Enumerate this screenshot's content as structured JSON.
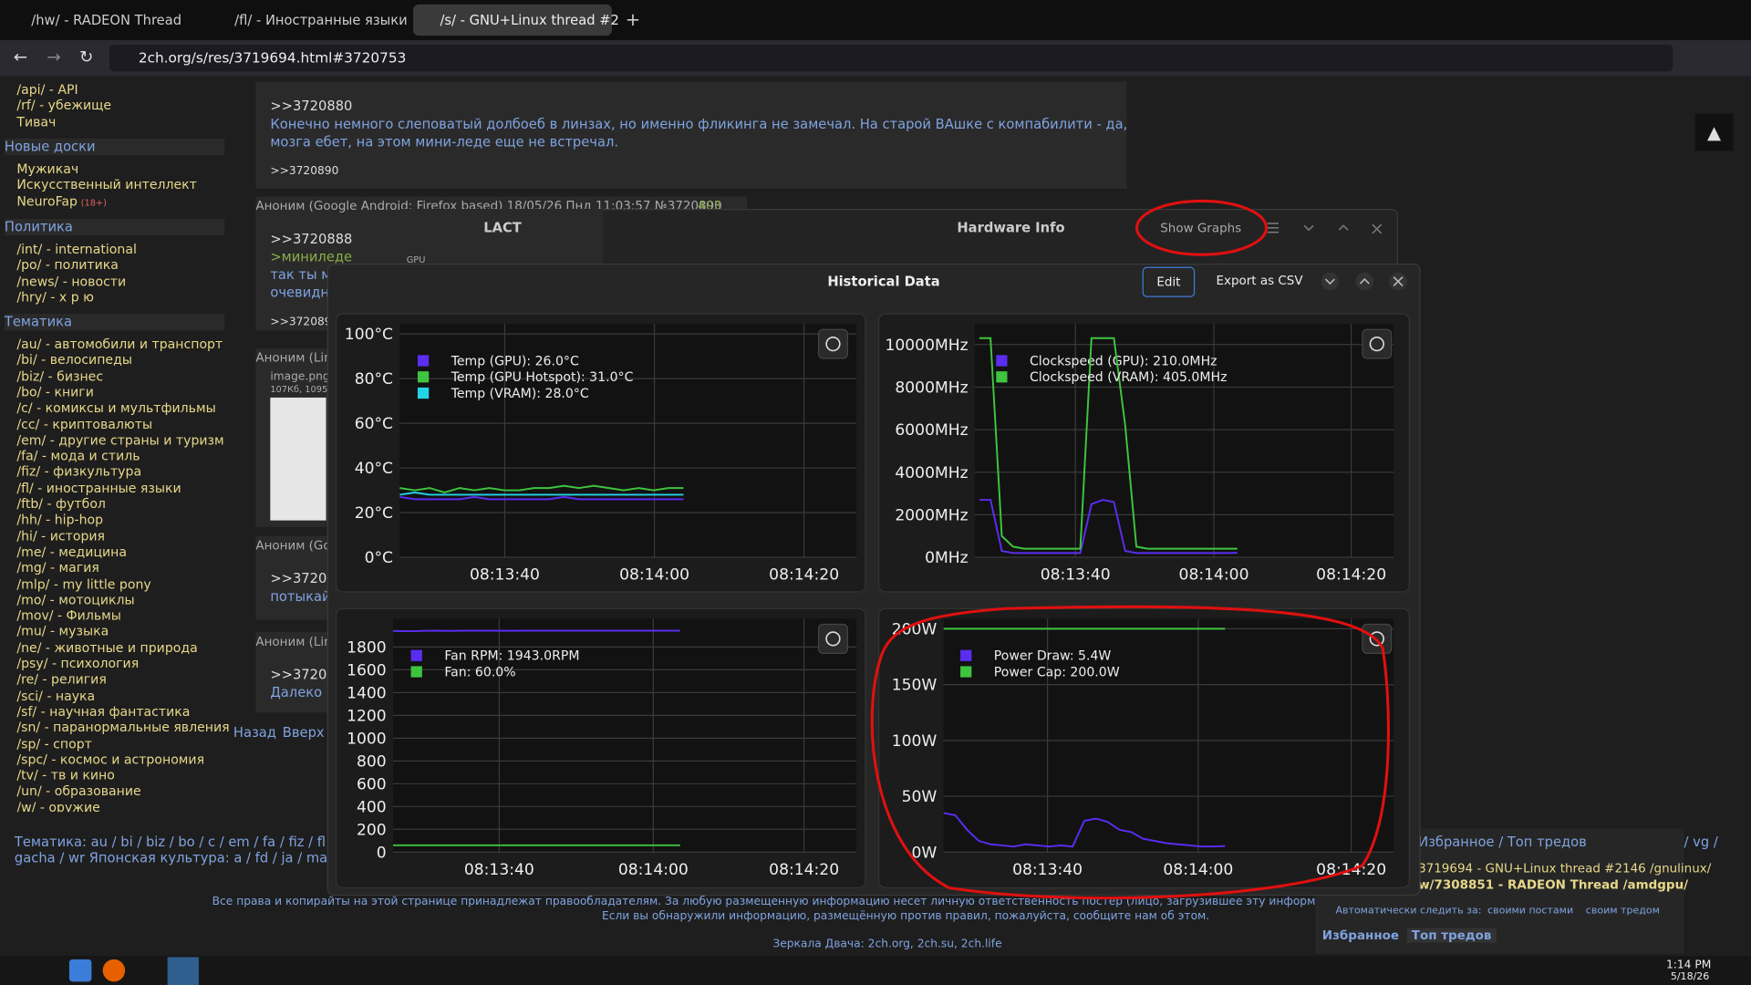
{
  "browser": {
    "tabs": [
      "/hw/ - RADEON Thread",
      "/fl/ - Иностранные языки",
      "/s/ - GNU+Linux thread #2"
    ],
    "url": "2ch.org/s/res/3719694.html#3720753"
  },
  "sidebar": {
    "sections": [
      {
        "items": [
          "/api/ - API",
          "/rf/ - убежище",
          "Тивач"
        ]
      },
      {
        "title": "Новые доски",
        "items": [
          "Мужикач",
          "Искусственный интеллект",
          "NeuroFap"
        ],
        "tag": "(18+)"
      },
      {
        "title": "Политика",
        "items": [
          "/int/ - international",
          "/po/ - политика",
          "/news/ - новости",
          "/hry/ - х р ю"
        ]
      },
      {
        "title": "Тематика",
        "items": [
          "/au/ - автомобили и транспорт",
          "/bi/ - велосипеды",
          "/biz/ - бизнес",
          "/bo/ - книги",
          "/c/ - комиксы и мультфильмы",
          "/cc/ - криптовалюты",
          "/em/ - другие страны и туризм",
          "/fa/ - мода и стиль",
          "/fiz/ - физкультура",
          "/fl/ - иностранные языки",
          "/ftb/ - футбол",
          "/hh/ - hip-hop",
          "/hi/ - история",
          "/me/ - медицина",
          "/mg/ - магия",
          "/mlp/ - my little pony",
          "/mo/ - мотоциклы",
          "/mov/ - Фильмы",
          "/mu/ - музыка",
          "/ne/ - животные и природа",
          "/psy/ - психология",
          "/re/ - религия",
          "/sci/ - наука",
          "/sf/ - научная фантастика",
          "/sn/ - паранормальные явления",
          "/sp/ - спорт",
          "/spc/ - космос и астрономия",
          "/tv/ - тв и кино",
          "/un/ - образование",
          "/w/ - оружие"
        ]
      }
    ]
  },
  "posts": [
    {
      "reply": ">>3720880",
      "text": [
        "Конечно немного слеповатый долбоеб в линзах, но именно фликинга не замечал. На старой ВАшке с компабилити - да,",
        "мозга ебет, на этом мини-леде еще не встречал."
      ],
      "backlinks": ">>3720890"
    },
    {
      "header": "Аноним (Google Android: Firefox based) 18/05/26 Пнд 11:03:57 №3720890",
      "count": "403",
      "reply": ">>3720888",
      "quote": ">миниледе",
      "text": [
        "так ты м",
        "очевидн"
      ],
      "backlinks": ">>3720893"
    },
    {
      "header": "Аноним (Lin",
      "file": "image.png",
      "size": "107Кб, 1095"
    },
    {
      "header": "Аноним (Go",
      "reply": ">>37208",
      "text": [
        "потыкай"
      ]
    },
    {
      "header": "Аноним (Lin",
      "reply": ">>37208",
      "text": [
        "Далеко"
      ]
    }
  ],
  "nav": [
    "Назад",
    "Вверх"
  ],
  "bottom": {
    "line1": "Тематика: au / bi / biz / bo / c / em / fa / fiz / fl / ftb / hh",
    "line2": "gacha / wr Японская культура: a / fd / ja / ma / vn Раз",
    "rights": "Все права и копирайты на этой странице принадлежат правообладателям. За любую размещенную информацию несет личную ответственность постер (лицо, загрузившее эту информацию), нее комментар",
    "report": "Если вы обнаружили информацию, размещённую против правил, пожалуйста, сообщите нам об этом.",
    "mirrors": "Зеркала Двача: 2ch.org, 2ch.su, 2ch.life"
  },
  "favorites": {
    "title": "Избранное / Топ тредов",
    "board": "/ vg /",
    "threads": [
      "3719694 - GNU+Linux thread #2146 /gnulinux/",
      "w/7308851 - RADEON Thread /amdgpu/"
    ],
    "auto": "Автоматически следить за:",
    "own_posts": "своими постами",
    "own_thread": "своим тредом",
    "tabs": [
      "Избранное",
      "Топ тредов"
    ]
  },
  "lact": {
    "title": "LACT",
    "window_title": "Hardware Info",
    "show_graphs": "Show Graphs",
    "section": "GPU"
  },
  "historical": {
    "title": "Historical Data",
    "edit": "Edit",
    "export": "Export as CSV",
    "charts": [
      {
        "type": "line",
        "ylim": [
          0,
          100
        ],
        "yticks": [
          {
            "value": 0,
            "label": "0°C"
          },
          {
            "value": 20,
            "label": "20°C"
          },
          {
            "value": 40,
            "label": "40°C"
          },
          {
            "value": 60,
            "label": "60°C"
          },
          {
            "value": 80,
            "label": "80°C"
          },
          {
            "value": 100,
            "label": "100°C"
          }
        ],
        "xticks": [
          "08:13:40",
          "08:14:00",
          "08:14:20"
        ],
        "grid": true,
        "series": [
          {
            "name": "Temp (GPU): 26.0°C",
            "color": "#5a2df0",
            "values": [
              27,
              26,
              26,
              26,
              26,
              27,
              26,
              26,
              26,
              26,
              26,
              27,
              26,
              26,
              26,
              26,
              26,
              26,
              26,
              26
            ]
          },
          {
            "name": "Temp (GPU Hotspot): 31.0°C",
            "color": "#3fc43f",
            "values": [
              31,
              30,
              31,
              29,
              31,
              30,
              31,
              30,
              30,
              31,
              31,
              32,
              31,
              32,
              31,
              30,
              31,
              30,
              31,
              31
            ]
          },
          {
            "name": "Temp (VRAM): 28.0°C",
            "color": "#22d3e8",
            "values": [
              28,
              29,
              28,
              28,
              28,
              28,
              28,
              28,
              28,
              28,
              28,
              28,
              28,
              28,
              28,
              28,
              28,
              28,
              28,
              28
            ]
          }
        ]
      },
      {
        "type": "line",
        "ylim": [
          0,
          10500
        ],
        "yticks": [
          {
            "value": 0,
            "label": "0MHz"
          },
          {
            "value": 2000,
            "label": "2000MHz"
          },
          {
            "value": 4000,
            "label": "4000MHz"
          },
          {
            "value": 6000,
            "label": "6000MHz"
          },
          {
            "value": 8000,
            "label": "8000MHz"
          },
          {
            "value": 10000,
            "label": "10000MHz"
          }
        ],
        "xticks": [
          "08:13:40",
          "08:14:00",
          "08:14:20"
        ],
        "grid": true,
        "series": [
          {
            "name": "Clockspeed (GPU): 210.0MHz",
            "color": "#5a2df0",
            "values": [
              2700,
              2700,
              300,
              200,
              200,
              200,
              200,
              200,
              200,
              200,
              2500,
              2700,
              2600,
              300,
              200,
              200,
              200,
              200,
              200,
              200,
              200,
              200,
              200,
              210
            ]
          },
          {
            "name": "Clockspeed (VRAM): 405.0MHz",
            "color": "#3fc43f",
            "values": [
              10300,
              10300,
              1000,
              500,
              405,
              405,
              405,
              405,
              405,
              405,
              10300,
              10300,
              10300,
              6200,
              500,
              405,
              405,
              405,
              405,
              405,
              405,
              405,
              405,
              405
            ]
          }
        ]
      },
      {
        "type": "line",
        "ylim": [
          0,
          1960
        ],
        "yticks": [
          0,
          200,
          400,
          600,
          800,
          1000,
          1200,
          1400,
          1600,
          1800
        ],
        "xticks": [
          "08:13:40",
          "08:14:00",
          "08:14:20"
        ],
        "grid": true,
        "series": [
          {
            "name": "Fan RPM: 1943.0RPM",
            "color": "#5a2df0",
            "values": [
              1940,
              1938,
              1943,
              1941,
              1943,
              1943,
              1942,
              1943,
              1943,
              1943,
              1943,
              1943,
              1943,
              1943,
              1943,
              1943
            ]
          },
          {
            "name": "Fan: 60.0%",
            "color": "#3fc43f",
            "values": [
              60,
              60,
              60,
              60,
              60,
              60,
              60,
              60,
              60,
              60,
              60,
              60,
              60,
              60,
              60,
              60
            ]
          }
        ]
      },
      {
        "type": "line",
        "ylim": [
          0,
          200
        ],
        "yticks": [
          {
            "value": 0,
            "label": "0W"
          },
          {
            "value": 50,
            "label": "50W"
          },
          {
            "value": 100,
            "label": "100W"
          },
          {
            "value": 150,
            "label": "150W"
          },
          {
            "value": 200,
            "label": "200W"
          }
        ],
        "xticks": [
          "08:13:40",
          "08:14:00",
          "08:14:20"
        ],
        "grid": true,
        "series": [
          {
            "name": "Power Draw: 5.4W",
            "color": "#5a2df0",
            "values": [
              35,
              33,
              20,
              10,
              7,
              6,
              5,
              7,
              6,
              5,
              6,
              5,
              28,
              30,
              27,
              20,
              18,
              12,
              10,
              8,
              7,
              6,
              5,
              5,
              5.4
            ]
          },
          {
            "name": "Power Cap: 200.0W",
            "color": "#3fc43f",
            "values": [
              200,
              200,
              200,
              200,
              200,
              200,
              200,
              200,
              200,
              200,
              200,
              200,
              200,
              200,
              200,
              200,
              200,
              200,
              200,
              200,
              200,
              200,
              200,
              200,
              200
            ]
          }
        ]
      }
    ]
  },
  "taskbar": {
    "time": "1:14 PM",
    "date": "5/18/26"
  }
}
